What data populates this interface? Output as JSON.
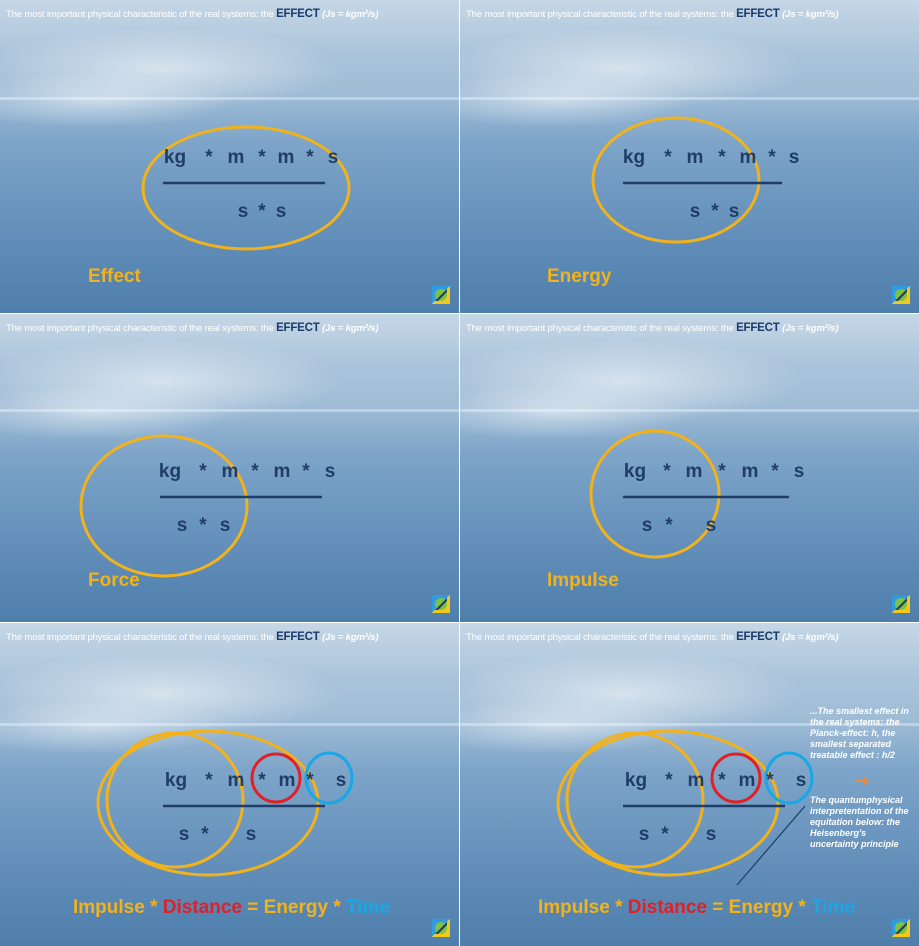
{
  "header": {
    "prefix": "The most important physical characteristic of the real systems:  the ",
    "effect": "EFFECT",
    "unit": "(Js = kgm²/s)"
  },
  "fraction": {
    "numerator": [
      "kg",
      "*",
      "m",
      "*",
      "m",
      "*",
      "s"
    ],
    "denominator": [
      "s",
      "*",
      "s"
    ]
  },
  "panels": [
    {
      "caption": "Effect"
    },
    {
      "caption": "Energy"
    },
    {
      "caption": "Force"
    },
    {
      "caption": "Impulse"
    },
    {
      "caption": ""
    },
    {
      "caption": ""
    }
  ],
  "equation": {
    "impulse": "Impulse",
    "op1": "*",
    "distance": "Distance",
    "eq": "=",
    "energy": "Energy",
    "op2": "*",
    "time": "Time"
  },
  "side_note": {
    "smallest": "...The smallest effect in the real systems: the Planck-effect: h, the smallest separated treatable effect : h/2",
    "quantum": "The quantumphysical interpretentation of the equitation below: the Heisenberg's uncertainty principle"
  },
  "colors": {
    "yellow": "#f2b21c",
    "red": "#e21f26",
    "blue": "#1aa7e6",
    "navy": "#1f3d66"
  },
  "icons": [
    "logo-icon",
    "arrow-icon"
  ]
}
